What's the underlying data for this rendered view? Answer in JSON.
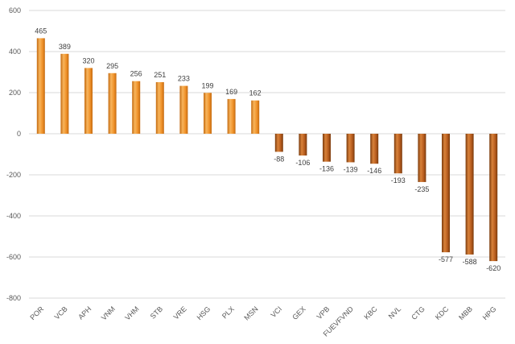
{
  "chart_data": {
    "type": "bar",
    "categories": [
      "POR",
      "VCB",
      "APH",
      "VNM",
      "VHM",
      "STB",
      "VRE",
      "HSG",
      "PLX",
      "MSN",
      "VCI",
      "GEX",
      "VPB",
      "FUEVFVND",
      "KBC",
      "NVL",
      "CTG",
      "KDC",
      "MBB",
      "HPG"
    ],
    "values": [
      465,
      389,
      320,
      295,
      256,
      251,
      233,
      199,
      169,
      162,
      -88,
      -106,
      -136,
      -139,
      -146,
      -193,
      -235,
      -577,
      -588,
      -620
    ],
    "title": "",
    "xlabel": "",
    "ylabel": "",
    "ylim": [
      -800,
      600
    ],
    "yticks": [
      600,
      400,
      200,
      0,
      -200,
      -400,
      -600,
      -800
    ],
    "grid": true,
    "legend": "none",
    "colors": {
      "positive_light": "#f8b55c",
      "positive_mid": "#f0922a",
      "positive_dark": "#c46a10",
      "negative_light": "#d9823a",
      "negative_mid": "#b85d1e",
      "negative_dark": "#7a3a0c",
      "axis_text": "#595959",
      "label_text": "#404040",
      "grid": "#d9d9d9"
    }
  }
}
